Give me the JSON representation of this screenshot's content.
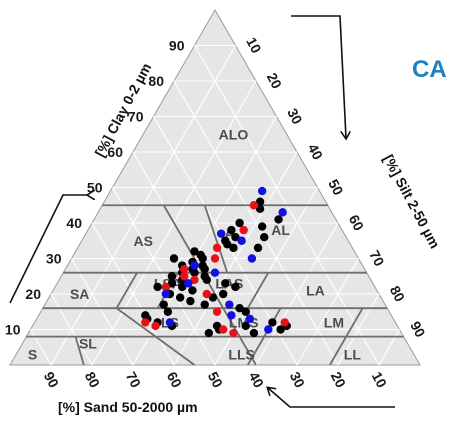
{
  "corner_text": "CA",
  "colors": {
    "triangle_fill": "#e6e6e6",
    "grid": "#ffffff",
    "zone_lines": "#6e6e6e",
    "zone_label": "#4d4d4d",
    "accent": "#1f7fc0"
  },
  "chart_data": {
    "type": "scatter",
    "subtype": "ternary",
    "axes": {
      "clay": {
        "label": "[%] Clay 0-2 µm",
        "ticks": [
          "10",
          "20",
          "30",
          "40",
          "50",
          "60",
          "70",
          "80",
          "90"
        ]
      },
      "silt": {
        "label": "[%] Silt 2-50 µm",
        "ticks": [
          "10",
          "20",
          "30",
          "40",
          "50",
          "60",
          "70",
          "80",
          "90"
        ]
      },
      "sand": {
        "label": "[%] Sand 50-2000 µm",
        "ticks": [
          "90",
          "80",
          "70",
          "60",
          "50",
          "40",
          "30",
          "20",
          "10"
        ]
      }
    },
    "grid": true,
    "zones": [
      {
        "label": "ALO",
        "clay": 65,
        "silt": 22
      },
      {
        "label": "AS",
        "clay": 35,
        "silt": 15
      },
      {
        "label": "A",
        "clay": 37,
        "silt": 35
      },
      {
        "label": "AL",
        "clay": 38,
        "silt": 47
      },
      {
        "label": "LSA",
        "clay": 23,
        "silt": 27
      },
      {
        "label": "LAS",
        "clay": 23,
        "silt": 42
      },
      {
        "label": "LA",
        "clay": 21,
        "silt": 64
      },
      {
        "label": "SA",
        "clay": 20,
        "silt": 7
      },
      {
        "label": "LS",
        "clay": 12,
        "silt": 33
      },
      {
        "label": "LMS",
        "clay": 12,
        "silt": 51
      },
      {
        "label": "LM",
        "clay": 12,
        "silt": 73
      },
      {
        "label": "SL",
        "clay": 6,
        "silt": 16
      },
      {
        "label": "LLS",
        "clay": 3,
        "silt": 55
      },
      {
        "label": "LL",
        "clay": 3,
        "silt": 82
      },
      {
        "label": "S",
        "clay": 3,
        "silt": 4
      }
    ],
    "series": [
      {
        "color": "#000000",
        "points": [
          {
            "clay": 46,
            "silt": 38
          },
          {
            "clay": 44,
            "silt": 39
          },
          {
            "clay": 40,
            "silt": 36
          },
          {
            "clay": 38,
            "silt": 35
          },
          {
            "clay": 36,
            "silt": 37
          },
          {
            "clay": 35,
            "silt": 35
          },
          {
            "clay": 34,
            "silt": 36
          },
          {
            "clay": 33,
            "silt": 38
          },
          {
            "clay": 32,
            "silt": 29
          },
          {
            "clay": 31,
            "silt": 31
          },
          {
            "clay": 30,
            "silt": 32
          },
          {
            "clay": 29,
            "silt": 30
          },
          {
            "clay": 28,
            "silt": 33
          },
          {
            "clay": 28,
            "silt": 28
          },
          {
            "clay": 27,
            "silt": 31
          },
          {
            "clay": 27,
            "silt": 34
          },
          {
            "clay": 26,
            "silt": 29
          },
          {
            "clay": 26,
            "silt": 32
          },
          {
            "clay": 25,
            "silt": 35
          },
          {
            "clay": 25,
            "silt": 27
          },
          {
            "clay": 24,
            "silt": 30
          },
          {
            "clay": 24,
            "silt": 36
          },
          {
            "clay": 23,
            "silt": 28
          },
          {
            "clay": 22,
            "silt": 25
          },
          {
            "clay": 22,
            "silt": 31
          },
          {
            "clay": 21,
            "silt": 34
          },
          {
            "clay": 20,
            "silt": 29
          },
          {
            "clay": 19,
            "silt": 32
          },
          {
            "clay": 18,
            "silt": 35
          },
          {
            "clay": 23,
            "silt": 41
          },
          {
            "clay": 22,
            "silt": 44
          },
          {
            "clay": 20,
            "silt": 42
          },
          {
            "clay": 19,
            "silt": 40
          },
          {
            "clay": 17,
            "silt": 39
          },
          {
            "clay": 16,
            "silt": 48
          },
          {
            "clay": 15,
            "silt": 50
          },
          {
            "clay": 13,
            "silt": 27
          },
          {
            "clay": 14,
            "silt": 26
          },
          {
            "clay": 12,
            "silt": 30
          },
          {
            "clay": 11,
            "silt": 34
          },
          {
            "clay": 11,
            "silt": 45
          },
          {
            "clay": 10,
            "silt": 46
          },
          {
            "clay": 9,
            "silt": 44
          },
          {
            "clay": 12,
            "silt": 58
          },
          {
            "clay": 11,
            "silt": 62
          },
          {
            "clay": 10,
            "silt": 61
          },
          {
            "clay": 11,
            "silt": 52
          },
          {
            "clay": 9,
            "silt": 55
          },
          {
            "clay": 36,
            "silt": 44
          },
          {
            "clay": 39,
            "silt": 42
          },
          {
            "clay": 33,
            "silt": 44
          },
          {
            "clay": 41,
            "silt": 45
          },
          {
            "clay": 30,
            "silt": 25
          },
          {
            "clay": 17,
            "silt": 29
          },
          {
            "clay": 15,
            "silt": 31
          }
        ]
      },
      {
        "color": "#e8101a",
        "points": [
          {
            "clay": 45,
            "silt": 37
          },
          {
            "clay": 38,
            "silt": 38
          },
          {
            "clay": 33,
            "silt": 34
          },
          {
            "clay": 30,
            "silt": 35
          },
          {
            "clay": 27,
            "silt": 29
          },
          {
            "clay": 24,
            "silt": 33
          },
          {
            "clay": 22,
            "silt": 27
          },
          {
            "clay": 20,
            "silt": 38
          },
          {
            "clay": 12,
            "silt": 27
          },
          {
            "clay": 11,
            "silt": 30
          },
          {
            "clay": 10,
            "silt": 47
          },
          {
            "clay": 12,
            "silt": 61
          },
          {
            "clay": 9,
            "silt": 50
          },
          {
            "clay": 25,
            "silt": 30
          },
          {
            "clay": 15,
            "silt": 43
          }
        ]
      },
      {
        "color": "#1010e0",
        "points": [
          {
            "clay": 49,
            "silt": 37
          },
          {
            "clay": 43,
            "silt": 45
          },
          {
            "clay": 37,
            "silt": 33
          },
          {
            "clay": 35,
            "silt": 39
          },
          {
            "clay": 28,
            "silt": 31
          },
          {
            "clay": 26,
            "silt": 37
          },
          {
            "clay": 23,
            "silt": 32
          },
          {
            "clay": 20,
            "silt": 28
          },
          {
            "clay": 17,
            "silt": 45
          },
          {
            "clay": 14,
            "silt": 47
          },
          {
            "clay": 12,
            "silt": 33
          },
          {
            "clay": 10,
            "silt": 58
          },
          {
            "clay": 30,
            "silt": 44
          },
          {
            "clay": 13,
            "silt": 52
          }
        ]
      }
    ]
  }
}
